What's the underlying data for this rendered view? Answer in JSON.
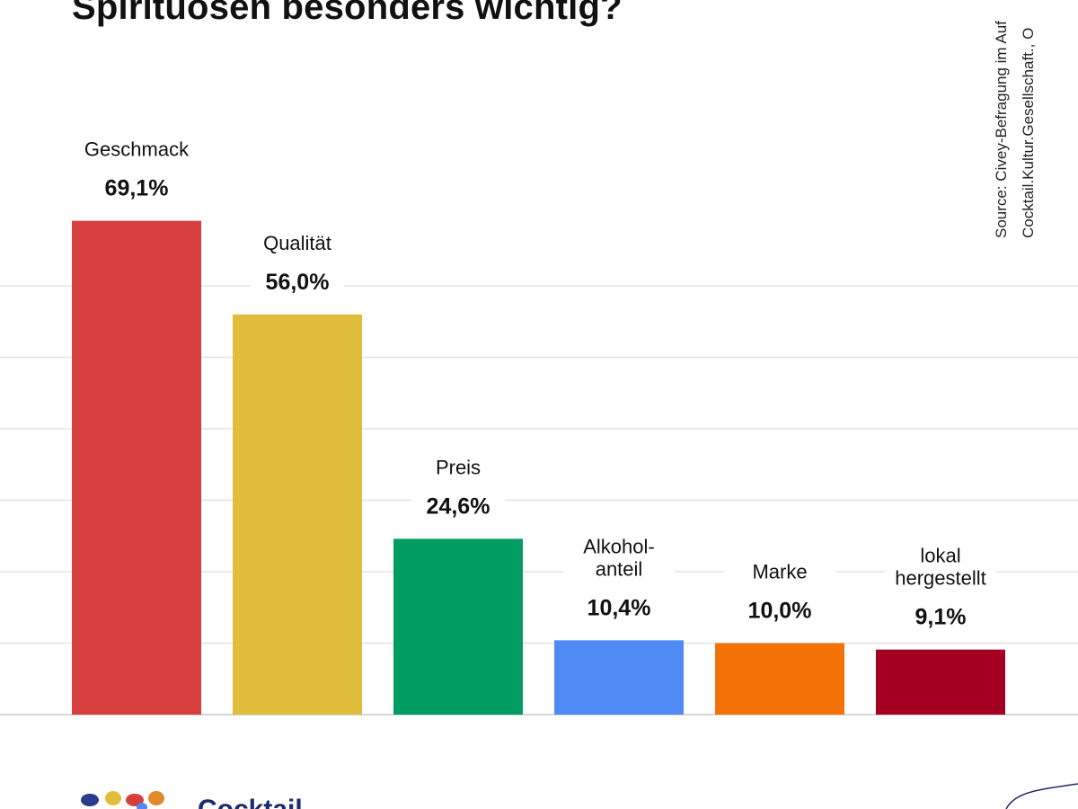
{
  "title": "Spirituosen besonders wichtig?",
  "source": {
    "line1": "Source: Civey-Befragung im Auf",
    "line2": "Cocktail.Kultur.Gesellschaft., O"
  },
  "logo": {
    "text": "Cocktail"
  },
  "colors": {
    "gridline": "#e3e3e3",
    "baseline": "#d6d6d6",
    "label": "#111111"
  },
  "chart_data": {
    "type": "bar",
    "title": "Spirituosen besonders wichtig?",
    "xlabel": "",
    "ylabel": "",
    "ylim": [
      0,
      100
    ],
    "grid": true,
    "categories": [
      [
        "Geschmack"
      ],
      [
        "Qualität"
      ],
      [
        "Preis"
      ],
      [
        "Alkohol-",
        "anteil"
      ],
      [
        "Marke"
      ],
      [
        "lokal",
        "hergestellt"
      ]
    ],
    "values": [
      69.1,
      56.0,
      24.6,
      10.4,
      10.0,
      9.1
    ],
    "value_labels": [
      "69,1%",
      "56,0%",
      "24,6%",
      "10,4%",
      "10,0%",
      "9,1%"
    ],
    "colors": [
      "#d73e3e",
      "#e0bd3a",
      "#009c62",
      "#4f8af4",
      "#f27208",
      "#a30022"
    ]
  }
}
